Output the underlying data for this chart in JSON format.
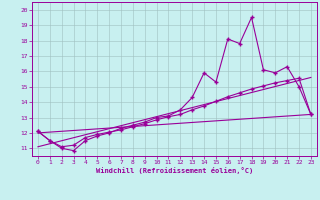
{
  "xlabel": "Windchill (Refroidissement éolien,°C)",
  "bg_color": "#c8f0f0",
  "line_color": "#990099",
  "grid_color": "#b0c8c8",
  "xlim": [
    -0.5,
    23.5
  ],
  "ylim": [
    10.5,
    20.5
  ],
  "xticks": [
    0,
    1,
    2,
    3,
    4,
    5,
    6,
    7,
    8,
    9,
    10,
    11,
    12,
    13,
    14,
    15,
    16,
    17,
    18,
    19,
    20,
    21,
    22,
    23
  ],
  "yticks": [
    11,
    12,
    13,
    14,
    15,
    16,
    17,
    18,
    19,
    20
  ],
  "line1_x": [
    0,
    1,
    2,
    3,
    4,
    5,
    6,
    7,
    8,
    9,
    10,
    11,
    12,
    13,
    14,
    15,
    16,
    17,
    18,
    19,
    20,
    21,
    22,
    23
  ],
  "line1_y": [
    12.1,
    11.5,
    11.0,
    10.85,
    11.5,
    11.8,
    12.0,
    12.3,
    12.5,
    12.7,
    13.0,
    13.1,
    13.5,
    14.3,
    15.9,
    15.3,
    18.1,
    17.8,
    19.5,
    16.1,
    15.9,
    16.3,
    15.0,
    13.2
  ],
  "line2_x": [
    0,
    1,
    2,
    3,
    4,
    5,
    6,
    7,
    8,
    9,
    10,
    11,
    12,
    13,
    14,
    15,
    16,
    17,
    18,
    19,
    20,
    21,
    22,
    23
  ],
  "line2_y": [
    12.1,
    11.5,
    11.1,
    11.2,
    11.7,
    11.9,
    12.05,
    12.2,
    12.4,
    12.6,
    12.85,
    13.05,
    13.2,
    13.5,
    13.75,
    14.05,
    14.35,
    14.6,
    14.85,
    15.05,
    15.25,
    15.4,
    15.55,
    13.2
  ],
  "line3_x": [
    0,
    23
  ],
  "line3_y": [
    12.0,
    13.2
  ],
  "line4_x": [
    0,
    23
  ],
  "line4_y": [
    11.1,
    15.6
  ]
}
